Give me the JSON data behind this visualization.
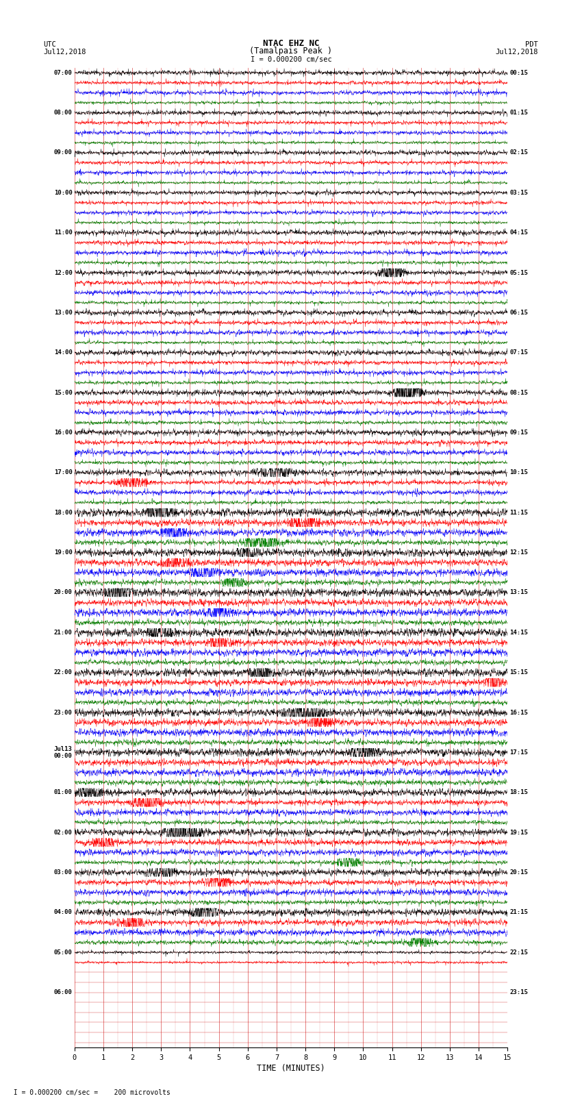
{
  "title_line1": "NTAC EHZ NC",
  "title_line2": "(Tamalpais Peak )",
  "scale_text": "I = 0.000200 cm/sec",
  "header_left_1": "UTC",
  "header_left_2": "Jul12,2018",
  "header_right_1": "PDT",
  "header_right_2": "Jul12,2018",
  "xlabel": "TIME (MINUTES)",
  "bottom_note": "  I = 0.000200 cm/sec =    200 microvolts",
  "xmin": 0,
  "xmax": 15,
  "xticks": [
    0,
    1,
    2,
    3,
    4,
    5,
    6,
    7,
    8,
    9,
    10,
    11,
    12,
    13,
    14,
    15
  ],
  "left_times": [
    "07:00",
    "",
    "",
    "",
    "08:00",
    "",
    "",
    "",
    "09:00",
    "",
    "",
    "",
    "10:00",
    "",
    "",
    "",
    "11:00",
    "",
    "",
    "",
    "12:00",
    "",
    "",
    "",
    "13:00",
    "",
    "",
    "",
    "14:00",
    "",
    "",
    "",
    "15:00",
    "",
    "",
    "",
    "16:00",
    "",
    "",
    "",
    "17:00",
    "",
    "",
    "",
    "18:00",
    "",
    "",
    "",
    "19:00",
    "",
    "",
    "",
    "20:00",
    "",
    "",
    "",
    "21:00",
    "",
    "",
    "",
    "22:00",
    "",
    "",
    "",
    "23:00",
    "",
    "",
    "",
    "Jul13\n00:00",
    "",
    "",
    "",
    "01:00",
    "",
    "",
    "",
    "02:00",
    "",
    "",
    "",
    "03:00",
    "",
    "",
    "",
    "04:00",
    "",
    "",
    "",
    "05:00",
    "",
    "",
    "",
    "06:00",
    "",
    "",
    "",
    ""
  ],
  "right_times": [
    "00:15",
    "",
    "",
    "",
    "01:15",
    "",
    "",
    "",
    "02:15",
    "",
    "",
    "",
    "03:15",
    "",
    "",
    "",
    "04:15",
    "",
    "",
    "",
    "05:15",
    "",
    "",
    "",
    "06:15",
    "",
    "",
    "",
    "07:15",
    "",
    "",
    "",
    "08:15",
    "",
    "",
    "",
    "09:15",
    "",
    "",
    "",
    "10:15",
    "",
    "",
    "",
    "11:15",
    "",
    "",
    "",
    "12:15",
    "",
    "",
    "",
    "13:15",
    "",
    "",
    "",
    "14:15",
    "",
    "",
    "",
    "15:15",
    "",
    "",
    "",
    "16:15",
    "",
    "",
    "",
    "17:15",
    "",
    "",
    "",
    "18:15",
    "",
    "",
    "",
    "19:15",
    "",
    "",
    "",
    "20:15",
    "",
    "",
    "",
    "21:15",
    "",
    "",
    "",
    "22:15",
    "",
    "",
    "",
    "23:15",
    "",
    "",
    "",
    ""
  ],
  "trace_colors": [
    "black",
    "red",
    "blue",
    "green"
  ],
  "num_traces": 98,
  "active_traces": 90,
  "noise_seed": 42,
  "bg_color": "white",
  "grid_color": "#cc0000",
  "vgrid_color": "#cc0000",
  "vgrid_minor_color": "#ddaaaa"
}
